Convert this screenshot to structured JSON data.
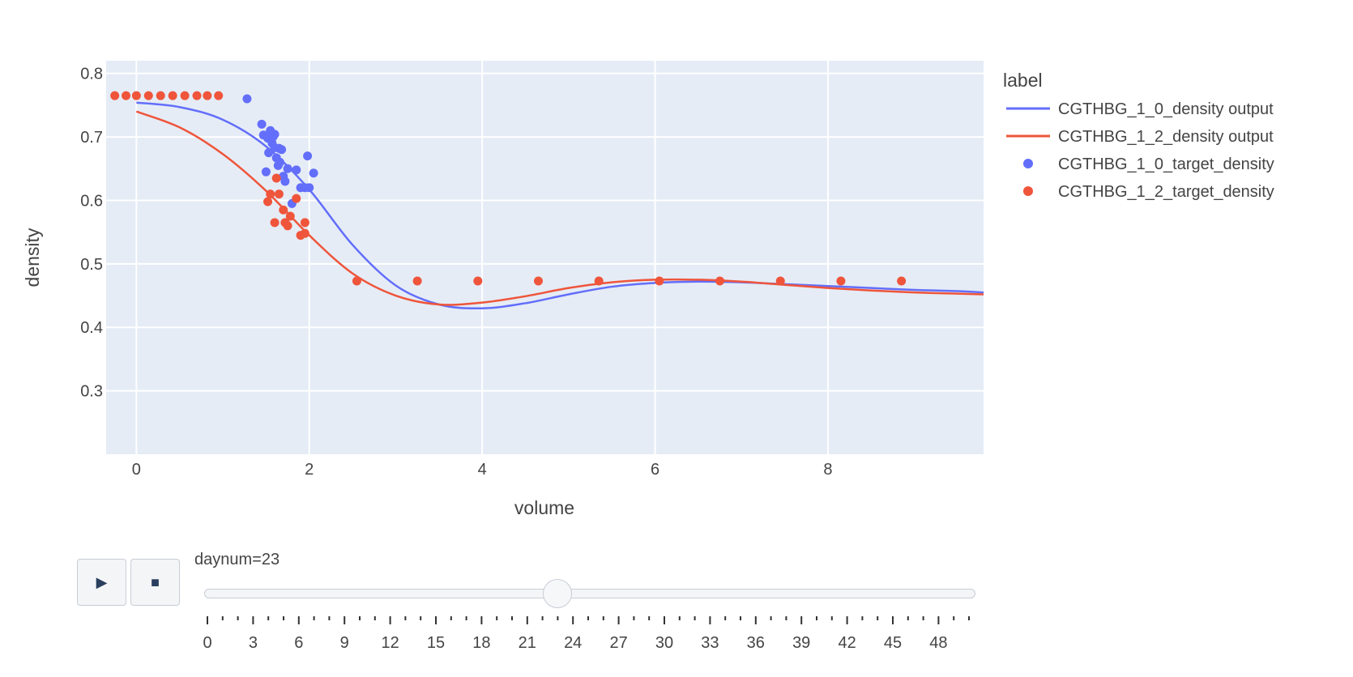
{
  "chart_data": {
    "type": "scatter",
    "xlabel": "volume",
    "ylabel": "density",
    "xlim": [
      -0.35,
      9.8
    ],
    "ylim": [
      0.2,
      0.82
    ],
    "x_ticks": [
      0,
      2,
      4,
      6,
      8
    ],
    "y_ticks": [
      0.3,
      0.4,
      0.5,
      0.6,
      0.7,
      0.8
    ],
    "grid": true,
    "legend": {
      "title": "label",
      "placement": "right"
    },
    "series": [
      {
        "name": "CGTHBG_1_0_density output",
        "mode": "line",
        "color": "#636efa",
        "x": [
          0,
          0.5,
          1.0,
          1.5,
          2.0,
          2.5,
          3.0,
          3.5,
          4.0,
          4.5,
          5.0,
          5.5,
          6.0,
          6.5,
          7.0,
          7.5,
          8.0,
          8.5,
          9.0,
          9.5,
          9.8
        ],
        "y": [
          0.754,
          0.747,
          0.727,
          0.685,
          0.617,
          0.53,
          0.466,
          0.436,
          0.43,
          0.438,
          0.452,
          0.464,
          0.47,
          0.472,
          0.471,
          0.468,
          0.465,
          0.462,
          0.459,
          0.457,
          0.455
        ]
      },
      {
        "name": "CGTHBG_1_2_density output",
        "mode": "line",
        "color": "#ef553b",
        "x": [
          0,
          0.5,
          1.0,
          1.5,
          2.0,
          2.5,
          3.0,
          3.5,
          4.0,
          4.5,
          5.0,
          5.5,
          6.0,
          6.5,
          7.0,
          7.5,
          8.0,
          8.5,
          9.0,
          9.5,
          9.8
        ],
        "y": [
          0.74,
          0.715,
          0.673,
          0.615,
          0.545,
          0.485,
          0.45,
          0.436,
          0.439,
          0.449,
          0.462,
          0.471,
          0.475,
          0.475,
          0.472,
          0.467,
          0.462,
          0.458,
          0.455,
          0.453,
          0.452
        ]
      },
      {
        "name": "CGTHBG_1_0_target_density",
        "mode": "markers",
        "color": "#636efa",
        "x": [
          1.28,
          1.45,
          1.47,
          1.5,
          1.52,
          1.53,
          1.55,
          1.57,
          1.58,
          1.6,
          1.62,
          1.64,
          1.65,
          1.66,
          1.68,
          1.7,
          1.72,
          1.75,
          1.8,
          1.85,
          1.9,
          1.95,
          1.98,
          2.0,
          2.05,
          1.55,
          1.6
        ],
        "y": [
          0.76,
          0.72,
          0.703,
          0.645,
          0.698,
          0.675,
          0.706,
          0.69,
          0.7,
          0.704,
          0.667,
          0.655,
          0.682,
          0.66,
          0.68,
          0.638,
          0.63,
          0.65,
          0.595,
          0.648,
          0.62,
          0.62,
          0.67,
          0.62,
          0.643,
          0.71,
          0.683
        ]
      },
      {
        "name": "CGTHBG_1_2_target_density",
        "mode": "markers",
        "color": "#ef553b",
        "x": [
          -0.25,
          -0.12,
          0.0,
          0.14,
          0.28,
          0.42,
          0.56,
          0.7,
          0.82,
          0.95,
          1.52,
          1.55,
          1.6,
          1.62,
          1.65,
          1.7,
          1.72,
          1.75,
          1.78,
          1.85,
          1.9,
          1.95,
          1.95,
          2.55,
          3.25,
          3.95,
          4.65,
          5.35,
          6.05,
          6.75,
          7.45,
          8.15,
          8.85
        ],
        "y": [
          0.765,
          0.765,
          0.765,
          0.765,
          0.765,
          0.765,
          0.765,
          0.765,
          0.765,
          0.765,
          0.598,
          0.61,
          0.565,
          0.635,
          0.61,
          0.585,
          0.565,
          0.56,
          0.575,
          0.603,
          0.545,
          0.565,
          0.548,
          0.473,
          0.473,
          0.473,
          0.473,
          0.473,
          0.473,
          0.473,
          0.473,
          0.473,
          0.473
        ]
      }
    ]
  },
  "slider": {
    "label": "daynum=23",
    "value": 23,
    "min": 0,
    "max": 50,
    "tick_labels": [
      "0",
      "3",
      "6",
      "9",
      "12",
      "15",
      "18",
      "21",
      "24",
      "27",
      "30",
      "33",
      "36",
      "39",
      "42",
      "45",
      "48"
    ]
  },
  "buttons": {
    "play_icon": "▶",
    "stop_icon": "■"
  }
}
